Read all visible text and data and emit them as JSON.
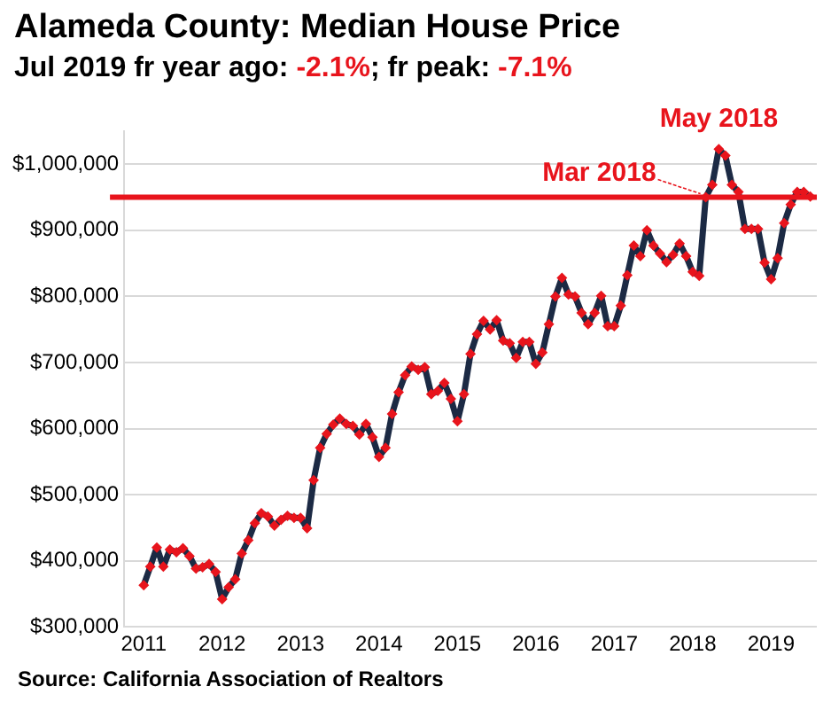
{
  "chart_data": {
    "type": "line",
    "title": "Alameda County: Median House Price",
    "subtitle": "Jul 2019 fr year ago: -2.1%; fr peak: -7.1%",
    "x": [
      "2011-01",
      "2011-02",
      "2011-03",
      "2011-04",
      "2011-05",
      "2011-06",
      "2011-07",
      "2011-08",
      "2011-09",
      "2011-10",
      "2011-11",
      "2011-12",
      "2012-01",
      "2012-02",
      "2012-03",
      "2012-04",
      "2012-05",
      "2012-06",
      "2012-07",
      "2012-08",
      "2012-09",
      "2012-10",
      "2012-11",
      "2012-12",
      "2013-01",
      "2013-02",
      "2013-03",
      "2013-04",
      "2013-05",
      "2013-06",
      "2013-07",
      "2013-08",
      "2013-09",
      "2013-10",
      "2013-11",
      "2013-12",
      "2014-01",
      "2014-02",
      "2014-03",
      "2014-04",
      "2014-05",
      "2014-06",
      "2014-07",
      "2014-08",
      "2014-09",
      "2014-10",
      "2014-11",
      "2014-12",
      "2015-01",
      "2015-02",
      "2015-03",
      "2015-04",
      "2015-05",
      "2015-06",
      "2015-07",
      "2015-08",
      "2015-09",
      "2015-10",
      "2015-11",
      "2015-12",
      "2016-01",
      "2016-02",
      "2016-03",
      "2016-04",
      "2016-05",
      "2016-06",
      "2016-07",
      "2016-08",
      "2016-09",
      "2016-10",
      "2016-11",
      "2016-12",
      "2017-01",
      "2017-02",
      "2017-03",
      "2017-04",
      "2017-05",
      "2017-06",
      "2017-07",
      "2017-08",
      "2017-09",
      "2017-10",
      "2017-11",
      "2017-12",
      "2018-01",
      "2018-02",
      "2018-03",
      "2018-04",
      "2018-05",
      "2018-06",
      "2018-07",
      "2018-08",
      "2018-09",
      "2018-10",
      "2018-11",
      "2018-12",
      "2019-01",
      "2019-02",
      "2019-03",
      "2019-04",
      "2019-05",
      "2019-06",
      "2019-07"
    ],
    "series": [
      {
        "color": "#1c2a44",
        "values": [
          363000,
          391000,
          420000,
          391000,
          417000,
          413000,
          419000,
          407000,
          388000,
          390000,
          395000,
          383000,
          342000,
          360000,
          372000,
          411000,
          431000,
          457000,
          472000,
          467000,
          453000,
          462000,
          468000,
          465000,
          465000,
          449000,
          522000,
          571000,
          592000,
          606000,
          615000,
          607000,
          604000,
          591000,
          607000,
          587000,
          557000,
          571000,
          622000,
          655000,
          681000,
          694000,
          689000,
          693000,
          652000,
          657000,
          669000,
          645000,
          611000,
          652000,
          713000,
          743000,
          763000,
          750000,
          764000,
          733000,
          729000,
          707000,
          731000,
          731000,
          698000,
          715000,
          758000,
          800000,
          828000,
          803000,
          800000,
          775000,
          758000,
          775000,
          801000,
          755000,
          755000,
          786000,
          832000,
          877000,
          861000,
          900000,
          877000,
          865000,
          852000,
          863000,
          880000,
          861000,
          837000,
          831000,
          950000,
          969000,
          1023000,
          1013000,
          969000,
          958000,
          902000,
          902000,
          902000,
          851000,
          826000,
          858000,
          911000,
          939000,
          958000,
          958000,
          951000
        ]
      }
    ],
    "marker": "diamond",
    "xlim": [
      "2010-10",
      "2019-08"
    ],
    "xticks": [
      "2011",
      "2012",
      "2013",
      "2014",
      "2015",
      "2016",
      "2017",
      "2018",
      "2019"
    ],
    "ylim": [
      300000,
      1050000
    ],
    "yticks": [
      {
        "value": 300000,
        "label": "$300,000"
      },
      {
        "value": 400000,
        "label": "$400,000"
      },
      {
        "value": 500000,
        "label": "$500,000"
      },
      {
        "value": 600000,
        "label": "$600,000"
      },
      {
        "value": 700000,
        "label": "$700,000"
      },
      {
        "value": 800000,
        "label": "$800,000"
      },
      {
        "value": 900000,
        "label": "$900,000"
      },
      {
        "value": 1000000,
        "label": "$1,000,000"
      }
    ],
    "grid": "y",
    "ref_lines": [
      {
        "axis": "y",
        "value": 950000,
        "color": "#e8141c"
      }
    ],
    "annotations": [
      {
        "text": "May 2018",
        "x": "2018-05",
        "y": 1023000
      },
      {
        "text": "Mar 2018",
        "x": "2018-03",
        "y": 950000
      },
      "Source: California Association of Realtors"
    ]
  }
}
